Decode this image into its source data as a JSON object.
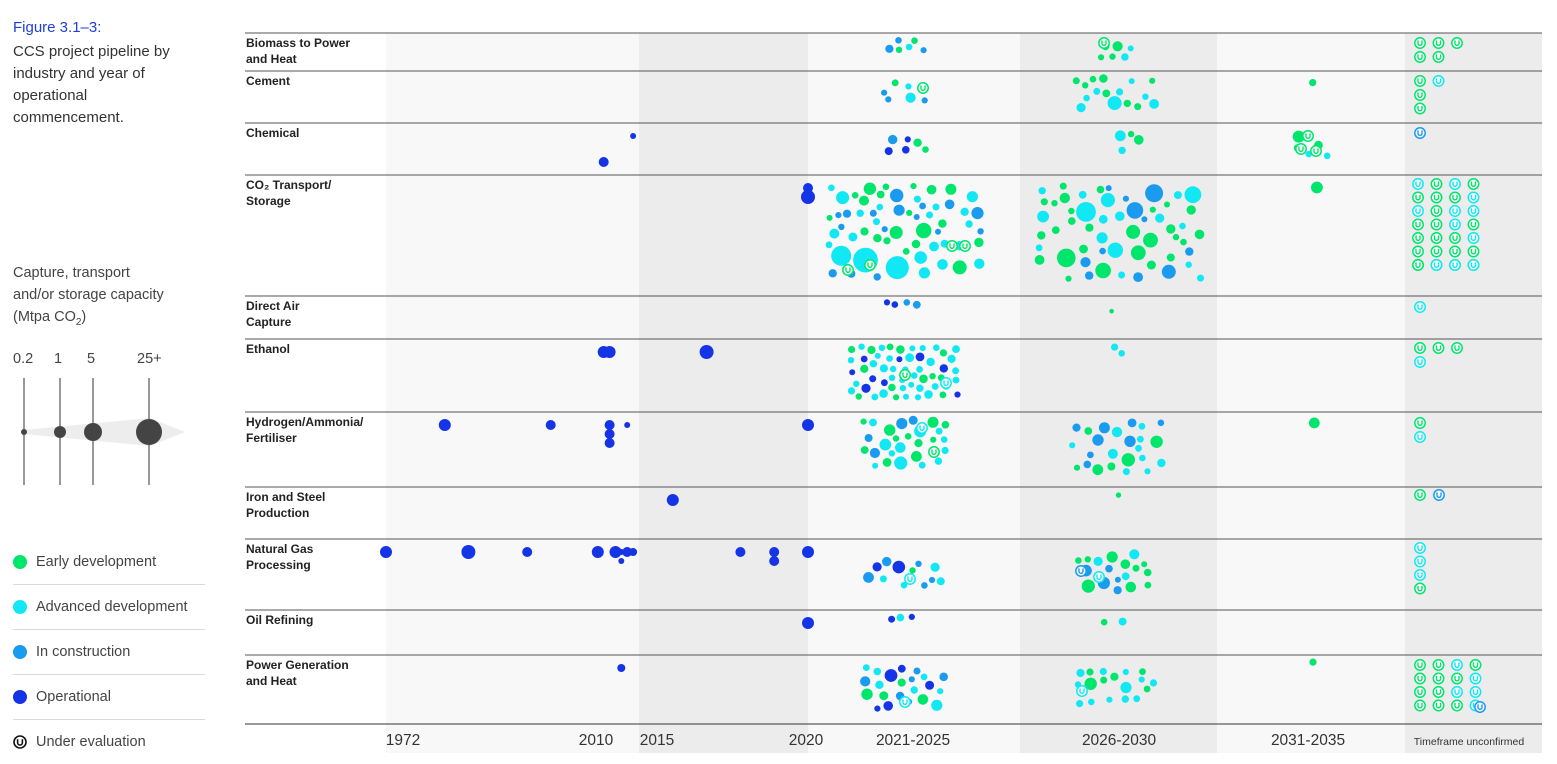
{
  "figure": {
    "label": "Figure 3.1–3:",
    "caption": "CCS project pipeline by industry and year of operational commencement."
  },
  "size_legend": {
    "title": "Capture, transport and/or storage capacity (Mtpa CO₂)",
    "labels": [
      "0.2",
      "1",
      "5",
      "25+"
    ]
  },
  "status_legend": [
    {
      "key": "early",
      "label": "Early development",
      "color": "#00e56b"
    },
    {
      "key": "advanced",
      "label": "Advanced development",
      "color": "#12e8f4"
    },
    {
      "key": "construction",
      "label": "In construction",
      "color": "#1a9bf0"
    },
    {
      "key": "operational",
      "label": "Operational",
      "color": "#1434e6"
    },
    {
      "key": "evaluation",
      "label": "Under evaluation",
      "color": "#111111"
    }
  ],
  "chart_data": {
    "type": "scatter",
    "x_axis_labels": [
      "1972",
      "2010",
      "2015",
      "2020",
      "2021-2025",
      "2026-2030",
      "2031-2035",
      "Timeframe unconfirmed"
    ],
    "industries": [
      "Biomass to Power and Heat",
      "Cement",
      "Chemical",
      "CO₂ Transport/ Storage",
      "Direct Air Capture",
      "Ethanol",
      "Hydrogen/Ammonia/ Fertiliser",
      "Iron and Steel Production",
      "Natural Gas Processing",
      "Oil Refining",
      "Power Generation and Heat"
    ],
    "operational_projects": [
      {
        "industry": "Chemical",
        "years": [
          2009,
          2014
        ]
      },
      {
        "industry": "CO₂ Transport/ Storage",
        "years": [
          2020,
          2020
        ]
      },
      {
        "industry": "Ethanol",
        "years": [
          2009,
          2010,
          2017
        ]
      },
      {
        "industry": "Hydrogen/Ammonia/ Fertiliser",
        "years": [
          1982,
          2000,
          2010,
          2010,
          2010,
          2013,
          2020
        ]
      },
      {
        "industry": "Iron and Steel Production",
        "years": [
          2016
        ]
      },
      {
        "industry": "Natural Gas Processing",
        "years": [
          1972,
          1986,
          1996,
          2008,
          2011,
          2012,
          2012,
          2013,
          2014,
          2018,
          2019,
          2019,
          2020
        ]
      },
      {
        "industry": "Oil Refining",
        "years": [
          2020
        ]
      },
      {
        "industry": "Power Generation and Heat",
        "years": [
          2012
        ]
      }
    ]
  }
}
